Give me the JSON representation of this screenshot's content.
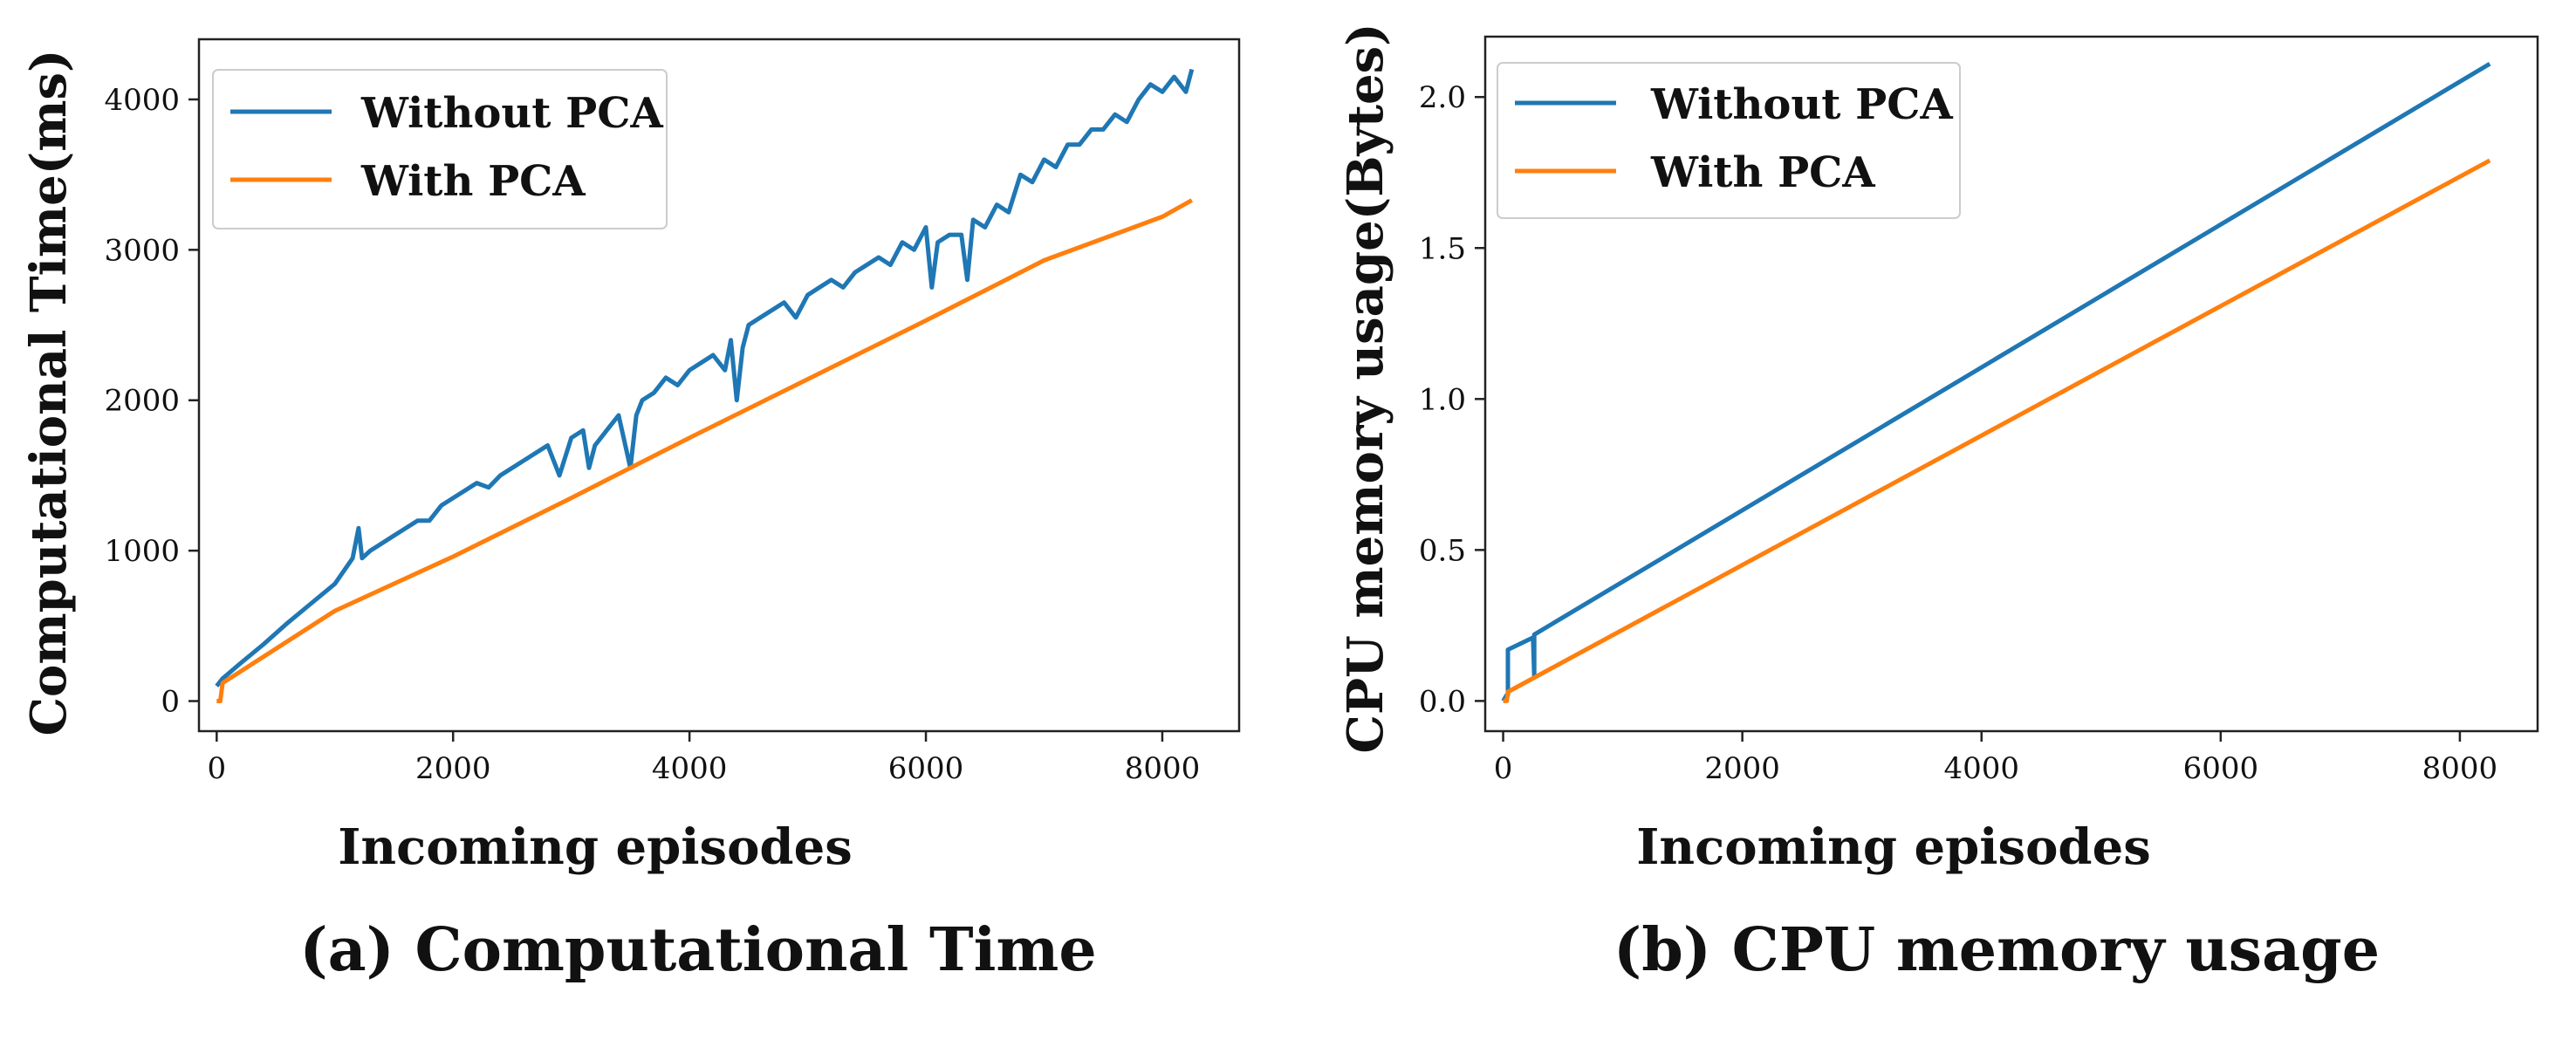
{
  "colors": {
    "without_pca": "#1f77b4",
    "with_pca": "#ff7f0e",
    "axis": "#222222",
    "legend_border": "#cccccc"
  },
  "chart_data": [
    {
      "type": "line",
      "caption": "(a) Computational Time",
      "xlabel": "Incoming episodes",
      "ylabel": "Computational Time(ms)",
      "xlim": [
        -150,
        8650
      ],
      "ylim": [
        -200,
        4400
      ],
      "xticks": [
        0,
        2000,
        4000,
        6000,
        8000
      ],
      "yticks": [
        0,
        1000,
        2000,
        3000,
        4000
      ],
      "legend": "top-left",
      "series": [
        {
          "name": "Without PCA",
          "x": [
            0,
            50,
            200,
            400,
            600,
            800,
            1000,
            1150,
            1200,
            1230,
            1300,
            1400,
            1500,
            1600,
            1700,
            1800,
            1900,
            2000,
            2100,
            2200,
            2300,
            2400,
            2500,
            2600,
            2700,
            2800,
            2900,
            3000,
            3100,
            3150,
            3200,
            3300,
            3400,
            3500,
            3550,
            3600,
            3700,
            3800,
            3900,
            4000,
            4100,
            4200,
            4300,
            4350,
            4400,
            4450,
            4500,
            4600,
            4700,
            4800,
            4900,
            5000,
            5100,
            5200,
            5300,
            5400,
            5500,
            5600,
            5700,
            5800,
            5900,
            6000,
            6050,
            6100,
            6200,
            6300,
            6350,
            6400,
            6500,
            6600,
            6700,
            6800,
            6900,
            7000,
            7100,
            7200,
            7300,
            7400,
            7500,
            7600,
            7700,
            7800,
            7900,
            8000,
            8100,
            8200,
            8250
          ],
          "values": [
            100,
            150,
            250,
            380,
            520,
            650,
            780,
            950,
            1150,
            950,
            1000,
            1050,
            1100,
            1150,
            1200,
            1200,
            1300,
            1350,
            1400,
            1450,
            1420,
            1500,
            1550,
            1600,
            1650,
            1700,
            1500,
            1750,
            1800,
            1550,
            1700,
            1800,
            1900,
            1550,
            1900,
            2000,
            2050,
            2150,
            2100,
            2200,
            2250,
            2300,
            2200,
            2400,
            2000,
            2350,
            2500,
            2550,
            2600,
            2650,
            2550,
            2700,
            2750,
            2800,
            2750,
            2850,
            2900,
            2950,
            2900,
            3050,
            3000,
            3150,
            2750,
            3050,
            3100,
            3100,
            2800,
            3200,
            3150,
            3300,
            3250,
            3500,
            3450,
            3600,
            3550,
            3700,
            3700,
            3800,
            3800,
            3900,
            3850,
            4000,
            4100,
            4050,
            4150,
            4050,
            4200
          ]
        },
        {
          "name": "With PCA",
          "x": [
            0,
            30,
            50,
            1000,
            2000,
            3000,
            4000,
            5000,
            6000,
            7000,
            8000,
            8250
          ],
          "values": [
            0,
            0,
            120,
            600,
            960,
            1350,
            1750,
            2140,
            2530,
            2930,
            3220,
            3330
          ]
        }
      ]
    },
    {
      "type": "line",
      "caption": "(b) CPU memory usage",
      "xlabel": "Incoming episodes",
      "ylabel": "CPU memory usage(Bytes)",
      "xlim": [
        -150,
        8650
      ],
      "ylim": [
        -0.1,
        2.2
      ],
      "xticks": [
        0,
        2000,
        4000,
        6000,
        8000
      ],
      "yticks": [
        0.0,
        0.5,
        1.0,
        1.5,
        2.0
      ],
      "legend": "top-left",
      "series": [
        {
          "name": "Without PCA",
          "x": [
            0,
            30,
            40,
            40,
            250,
            260,
            260,
            8250
          ],
          "values": [
            0.0,
            0.02,
            0.02,
            0.17,
            0.21,
            0.08,
            0.22,
            2.11
          ]
        },
        {
          "name": "With PCA",
          "x": [
            0,
            30,
            40,
            8250
          ],
          "values": [
            0.0,
            0.0,
            0.03,
            1.79
          ]
        }
      ]
    }
  ]
}
